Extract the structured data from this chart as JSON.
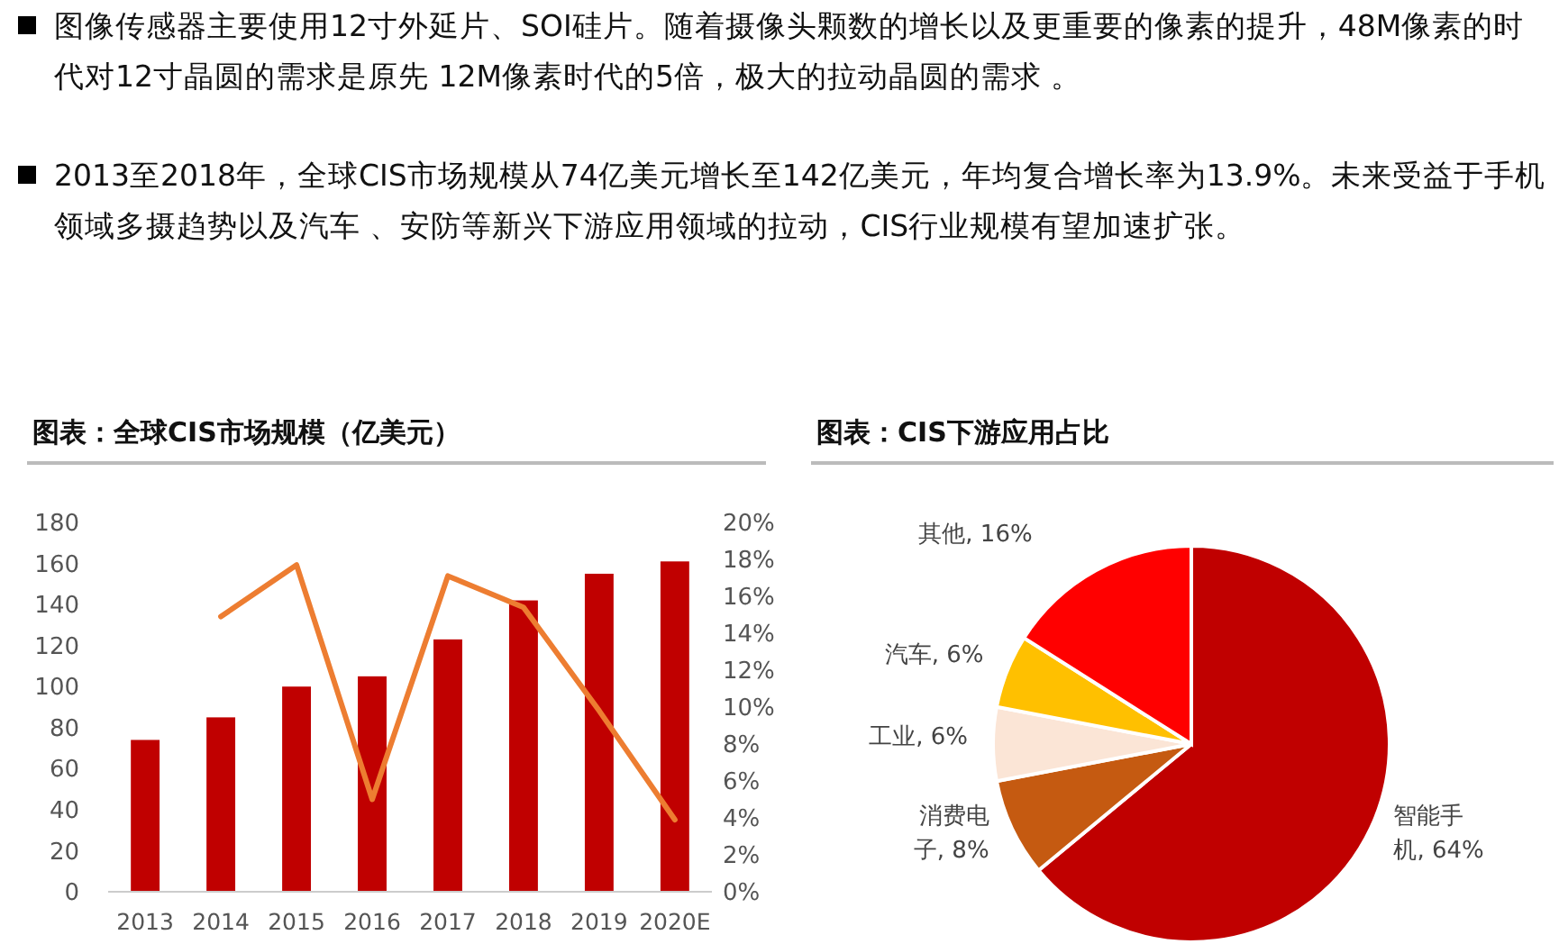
{
  "chart_data": [
    {
      "type": "other",
      "annotations": [
        "图像传感器主要使用12寸外延片、SOI硅片。随着摄像头颗数的增长以及更重要的像素的提升，48M像素的时代对12寸晶圆的需求是原先 12M像素时代的5倍，极大的拉动晶圆的需求 。",
        "2013至2018年，全球CIS市场规模从74亿美元增长至142亿美元，年均复合增长率为13.9%。未来受益于手机领域多摄趋势以及汽车 、安防等新兴下游应用领域的拉动，CIS行业规模有望加速扩张。"
      ]
    },
    {
      "type": "bar",
      "title": "图表：全球CIS市场规模（亿美元）",
      "categories": [
        "2013",
        "2014",
        "2015",
        "2016",
        "2017",
        "2018",
        "2019",
        "2020E"
      ],
      "series": [
        {
          "type": "bar",
          "color": "#c00000",
          "values": [
            74,
            85,
            100,
            105,
            123,
            142,
            155,
            161
          ]
        },
        {
          "type": "line",
          "axis": "y2",
          "color": "#ed7d31",
          "values": [
            null,
            14.9,
            17.7,
            5.0,
            17.1,
            15.4,
            9.8,
            3.9
          ]
        }
      ],
      "ylim": [
        0,
        180
      ],
      "yticks": [
        0,
        20,
        40,
        60,
        80,
        100,
        120,
        140,
        160,
        180
      ],
      "y2lim": [
        0,
        20
      ],
      "y2ticks": [
        {
          "value": 0,
          "label": "0%"
        },
        {
          "value": 2,
          "label": "2%"
        },
        {
          "value": 4,
          "label": "4%"
        },
        {
          "value": 6,
          "label": "6%"
        },
        {
          "value": 8,
          "label": "8%"
        },
        {
          "value": 10,
          "label": "10%"
        },
        {
          "value": 12,
          "label": "12%"
        },
        {
          "value": 14,
          "label": "14%"
        },
        {
          "value": 16,
          "label": "16%"
        },
        {
          "value": 18,
          "label": "18%"
        },
        {
          "value": 20,
          "label": "20%"
        }
      ],
      "grid": false
    },
    {
      "type": "pie",
      "title": "图表：CIS下游应用占比",
      "categories": [
        "智能手机",
        "消费电子",
        "工业",
        "汽车",
        "其他"
      ],
      "values": [
        64,
        8,
        6,
        6,
        16
      ],
      "colors": [
        "#c00000",
        "#c55a11",
        "#fbe5d6",
        "#ffc000",
        "#ff0000"
      ],
      "value_labels": [
        "64%",
        "8%",
        "6%",
        "6%",
        "16%"
      ]
    }
  ]
}
